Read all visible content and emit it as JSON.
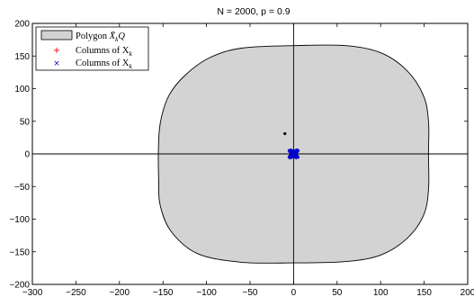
{
  "chart_data": {
    "type": "scatter",
    "title": "N = 2000, p = 0.9",
    "xlabel": "",
    "ylabel": "",
    "xlim": [
      -300,
      200
    ],
    "ylim": [
      -200,
      200
    ],
    "xticks": [
      -300,
      -250,
      -200,
      -150,
      -100,
      -50,
      0,
      50,
      100,
      150,
      200
    ],
    "yticks": [
      -200,
      -150,
      -100,
      -50,
      0,
      50,
      100,
      150,
      200
    ],
    "grid": false,
    "legend_position": "top-left",
    "polygon": {
      "legend_label": "Polygon",
      "legend_math": "X̄",
      "legend_sub": "k",
      "legend_suffix": "Q",
      "fill": "#d3d3d3",
      "vertices": [
        [
          155,
          0
        ],
        [
          155,
          -55
        ],
        [
          149,
          -95
        ],
        [
          130,
          -130
        ],
        [
          100,
          -155
        ],
        [
          60,
          -165
        ],
        [
          0,
          -167
        ],
        [
          -60,
          -166
        ],
        [
          -110,
          -153
        ],
        [
          -140,
          -120
        ],
        [
          -153,
          -80
        ],
        [
          -155,
          -40
        ],
        [
          -155,
          20
        ],
        [
          -152,
          55
        ],
        [
          -143,
          90
        ],
        [
          -125,
          120
        ],
        [
          -97,
          147
        ],
        [
          -60,
          162
        ],
        [
          0,
          166
        ],
        [
          60,
          166
        ],
        [
          100,
          155
        ],
        [
          130,
          128
        ],
        [
          149,
          90
        ],
        [
          155,
          50
        ],
        [
          155,
          0
        ]
      ]
    },
    "series": [
      {
        "name": "Columns of X",
        "legend_sub": "k",
        "legend_mark": "+",
        "marker": "plus",
        "color": "#ff0000",
        "points": [
          [
            0,
            0
          ],
          [
            1,
            0.5
          ],
          [
            -1,
            -0.5
          ],
          [
            0.5,
            1
          ],
          [
            -0.5,
            -1
          ]
        ]
      },
      {
        "name": "Columns of X",
        "legend_sub": "k",
        "legend_mark": "×",
        "marker": "x",
        "color": "#0000cc",
        "points": [
          [
            0,
            0
          ],
          [
            1.5,
            1
          ],
          [
            -1.5,
            -1
          ],
          [
            2,
            -1
          ],
          [
            -2,
            1
          ],
          [
            1,
            2
          ],
          [
            -1,
            -2
          ],
          [
            2.5,
            0
          ],
          [
            -2.5,
            0
          ],
          [
            0,
            2.5
          ],
          [
            0,
            -2.5
          ],
          [
            1.8,
            1.8
          ],
          [
            -1.8,
            -1.8
          ],
          [
            1.8,
            -1.8
          ],
          [
            -1.8,
            1.8
          ]
        ]
      }
    ],
    "extra_points": [
      {
        "x": -10,
        "y": 31,
        "color": "#000000"
      }
    ]
  }
}
